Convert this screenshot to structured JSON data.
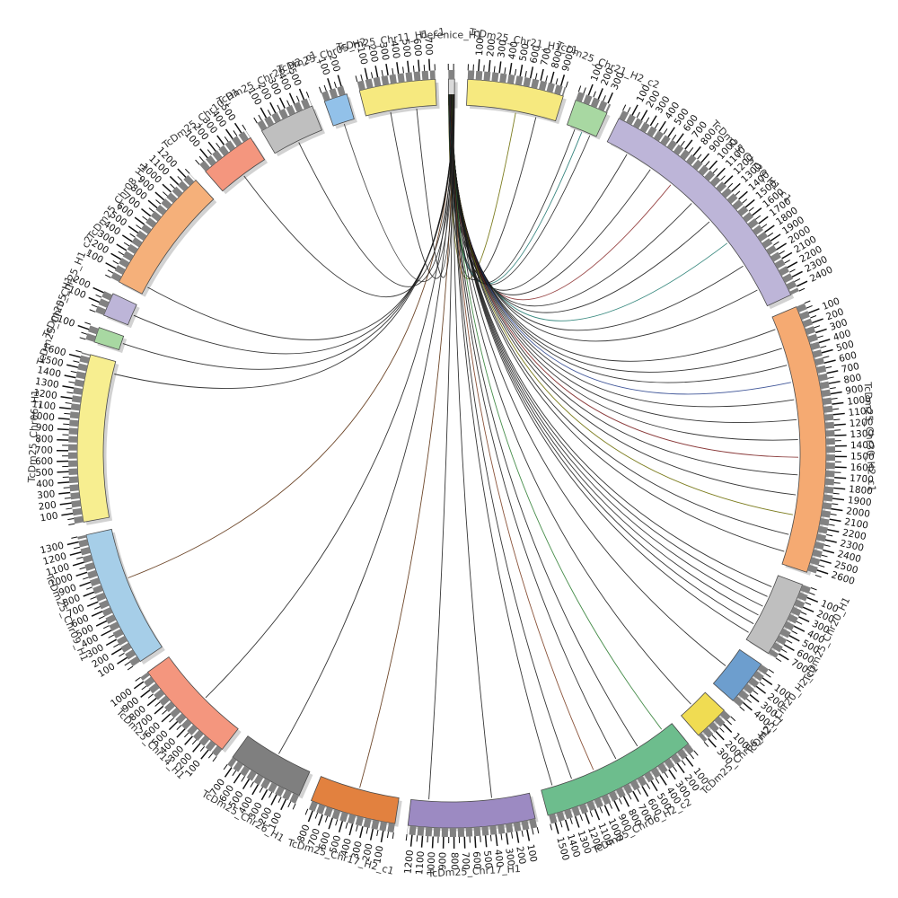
{
  "figure": {
    "background": "#ffffff",
    "description_label": "circular synteny plot"
  },
  "chart_data": {
    "type": "chord",
    "title": "",
    "layout": {
      "start_deg": -0.5,
      "gap_deg": 2.0,
      "tick_interval": 100,
      "minor_tick_interval": 50,
      "label_every": 100,
      "legend_position": "none",
      "grid": false
    },
    "link_source": "berenice_H1",
    "segments": [
      {
        "name": "berenice_H1",
        "length": 60,
        "color": "#d9d9d9"
      },
      {
        "name": "TcDm25_Chr21_H1_c1",
        "length": 950,
        "color": "#f6e97f"
      },
      {
        "name": "TcDm25_Chr21_H2_c2",
        "length": 330,
        "color": "#a8d8a2"
      },
      {
        "name": "TcDm25_Chr30_H1_c1",
        "length": 2450,
        "color": "#bdb5d8"
      },
      {
        "name": "TcDm25_Chr30_H2_c1",
        "length": 2650,
        "color": "#f5aa72"
      },
      {
        "name": "TcDm25_Chr20_H1",
        "length": 750,
        "color": "#bfbfbf"
      },
      {
        "name": "TcDm25_Chr20_H2_c1",
        "length": 450,
        "color": "#6d9ece"
      },
      {
        "name": "TcDm25_Chr06_H2_c1",
        "length": 350,
        "color": "#f0dc52"
      },
      {
        "name": "TcDm25_Chr06_H2_c2",
        "length": 1550,
        "color": "#6dbd8d"
      },
      {
        "name": "TcDm25_Chr17_H1",
        "length": 1250,
        "color": "#9c8ac2"
      },
      {
        "name": "TcDm25_Chr17_H2_c1",
        "length": 850,
        "color": "#e2813f"
      },
      {
        "name": "TcDm25_Chr26_H1",
        "length": 750,
        "color": "#7f7f7f"
      },
      {
        "name": "TcDm25_Chr14_H1",
        "length": 1050,
        "color": "#f4967e"
      },
      {
        "name": "TcDm25_Chr09_H1",
        "length": 1350,
        "color": "#a6cee8"
      },
      {
        "name": "TcDm25_Chr06_H1",
        "length": 1650,
        "color": "#f7ee90"
      },
      {
        "name": "TcDm25_Chr05_H1",
        "length": 150,
        "color": "#a8d8a2"
      },
      {
        "name": "TcDm25_Chr25_H1_c2",
        "length": 230,
        "color": "#bdb5d8"
      },
      {
        "name": "TcDm25_Chr08_H1",
        "length": 1250,
        "color": "#f5b07a"
      },
      {
        "name": "TcDm25_Chr10_H1",
        "length": 550,
        "color": "#f4967e"
      },
      {
        "name": "TcDm25_Chr26_H2_c1",
        "length": 550,
        "color": "#bfbfbf"
      },
      {
        "name": "TcDm25_Chr05_H2",
        "length": 230,
        "color": "#92c1e9"
      },
      {
        "name": "TcDm25_Chr11_H1_c1",
        "length": 750,
        "color": "#f6e97f"
      }
    ],
    "links": [
      {
        "target": "TcDm25_Chr21_H1_c1",
        "frac": 0.55,
        "color": "#6b6b00"
      },
      {
        "target": "TcDm25_Chr21_H1_c1",
        "frac": 0.78,
        "color": "#1a1a1a"
      },
      {
        "target": "TcDm25_Chr21_H2_c2",
        "frac": 0.28,
        "color": "#1a1a1a"
      },
      {
        "target": "TcDm25_Chr21_H2_c2",
        "frac": 0.52,
        "color": "#17726b"
      },
      {
        "target": "TcDm25_Chr21_H2_c2",
        "frac": 0.8,
        "color": "#1a1a1a"
      },
      {
        "target": "TcDm25_Chr30_H1_c1",
        "frac": 0.1,
        "color": "#1a1a1a"
      },
      {
        "target": "TcDm25_Chr30_H1_c1",
        "frac": 0.22,
        "color": "#1a1a1a"
      },
      {
        "target": "TcDm25_Chr30_H1_c1",
        "frac": 0.33,
        "color": "#8b2e2e"
      },
      {
        "target": "TcDm25_Chr30_H1_c1",
        "frac": 0.45,
        "color": "#1a1a1a"
      },
      {
        "target": "TcDm25_Chr30_H1_c1",
        "frac": 0.56,
        "color": "#1a1a1a"
      },
      {
        "target": "TcDm25_Chr30_H1_c1",
        "frac": 0.68,
        "color": "#1f7a6e"
      },
      {
        "target": "TcDm25_Chr30_H1_c1",
        "frac": 0.8,
        "color": "#1a1a1a"
      },
      {
        "target": "TcDm25_Chr30_H1_c1",
        "frac": 0.92,
        "color": "#1a1a1a"
      },
      {
        "target": "TcDm25_Chr30_H2_c1",
        "frac": 0.05,
        "color": "#1a1a1a"
      },
      {
        "target": "TcDm25_Chr30_H2_c1",
        "frac": 0.13,
        "color": "#1a1a1a"
      },
      {
        "target": "TcDm25_Chr30_H2_c1",
        "frac": 0.2,
        "color": "#1a1a1a"
      },
      {
        "target": "TcDm25_Chr30_H2_c1",
        "frac": 0.27,
        "color": "#27408b"
      },
      {
        "target": "TcDm25_Chr30_H2_c1",
        "frac": 0.34,
        "color": "#1a1a1a"
      },
      {
        "target": "TcDm25_Chr30_H2_c1",
        "frac": 0.42,
        "color": "#1a1a1a"
      },
      {
        "target": "TcDm25_Chr30_H2_c1",
        "frac": 0.5,
        "color": "#1a1a1a"
      },
      {
        "target": "TcDm25_Chr30_H2_c1",
        "frac": 0.57,
        "color": "#7a1f1f"
      },
      {
        "target": "TcDm25_Chr30_H2_c1",
        "frac": 0.64,
        "color": "#1a1a1a"
      },
      {
        "target": "TcDm25_Chr30_H2_c1",
        "frac": 0.72,
        "color": "#1a1a1a"
      },
      {
        "target": "TcDm25_Chr30_H2_c1",
        "frac": 0.8,
        "color": "#6b6b00"
      },
      {
        "target": "TcDm25_Chr30_H2_c1",
        "frac": 0.88,
        "color": "#1a1a1a"
      },
      {
        "target": "TcDm25_Chr30_H2_c1",
        "frac": 0.95,
        "color": "#1a1a1a"
      },
      {
        "target": "TcDm25_Chr20_H1",
        "frac": 0.18,
        "color": "#1a1a1a"
      },
      {
        "target": "TcDm25_Chr20_H1",
        "frac": 0.33,
        "color": "#1a1a1a"
      },
      {
        "target": "TcDm25_Chr20_H1",
        "frac": 0.48,
        "color": "#1a1a1a"
      },
      {
        "target": "TcDm25_Chr20_H1",
        "frac": 0.62,
        "color": "#1a1a1a"
      },
      {
        "target": "TcDm25_Chr20_H1",
        "frac": 0.76,
        "color": "#1a1a1a"
      },
      {
        "target": "TcDm25_Chr20_H1",
        "frac": 0.9,
        "color": "#1a1a1a"
      },
      {
        "target": "TcDm25_Chr20_H2_c1",
        "frac": 0.5,
        "color": "#1a1a1a"
      },
      {
        "target": "TcDm25_Chr06_H2_c1",
        "frac": 0.55,
        "color": "#1a1a1a"
      },
      {
        "target": "TcDm25_Chr06_H2_c2",
        "frac": 0.08,
        "color": "#2e7d32"
      },
      {
        "target": "TcDm25_Chr06_H2_c2",
        "frac": 0.28,
        "color": "#1a1a1a"
      },
      {
        "target": "TcDm25_Chr06_H2_c2",
        "frac": 0.45,
        "color": "#1a1a1a"
      },
      {
        "target": "TcDm25_Chr06_H2_c2",
        "frac": 0.62,
        "color": "#7a3b1f"
      },
      {
        "target": "TcDm25_Chr06_H2_c2",
        "frac": 0.78,
        "color": "#1a1a1a"
      },
      {
        "target": "TcDm25_Chr06_H2_c2",
        "frac": 0.92,
        "color": "#1a1a1a"
      },
      {
        "target": "TcDm25_Chr17_H1",
        "frac": 0.32,
        "color": "#1a1a1a"
      },
      {
        "target": "TcDm25_Chr17_H1",
        "frac": 0.85,
        "color": "#1a1a1a"
      },
      {
        "target": "TcDm25_Chr17_H2_c1",
        "frac": 0.5,
        "color": "#5a2d0c"
      },
      {
        "target": "TcDm25_Chr26_H1",
        "frac": 0.5,
        "color": "#1a1a1a"
      },
      {
        "target": "TcDm25_Chr14_H1",
        "frac": 0.45,
        "color": "#1a1a1a"
      },
      {
        "target": "TcDm25_Chr09_H1",
        "frac": 0.6,
        "color": "#5a2d0c"
      },
      {
        "target": "TcDm25_Chr06_H1",
        "frac": 0.92,
        "color": "#1a1a1a"
      },
      {
        "target": "TcDm25_Chr05_H1",
        "frac": 0.5,
        "color": "#1a1a1a"
      },
      {
        "target": "TcDm25_Chr25_H1_c2",
        "frac": 0.5,
        "color": "#1a1a1a"
      },
      {
        "target": "TcDm25_Chr08_H1",
        "frac": 0.07,
        "color": "#1a1a1a"
      },
      {
        "target": "TcDm25_Chr10_H1",
        "frac": 0.5,
        "color": "#1a1a1a"
      },
      {
        "target": "TcDm25_Chr26_H2_c1",
        "frac": 0.5,
        "color": "#1a1a1a"
      },
      {
        "target": "TcDm25_Chr05_H2",
        "frac": 0.5,
        "color": "#333333"
      },
      {
        "target": "TcDm25_Chr11_H1_c1",
        "frac": 0.35,
        "color": "#1a1a1a"
      },
      {
        "target": "TcDm25_Chr11_H1_c1",
        "frac": 0.72,
        "color": "#1a1a1a"
      }
    ],
    "style": {
      "tick_color": "#111111",
      "band_color": "#828282",
      "segment_outline": "#4a4a4a",
      "name_label_color": "#333333",
      "shadow_color": "#adadad"
    }
  }
}
